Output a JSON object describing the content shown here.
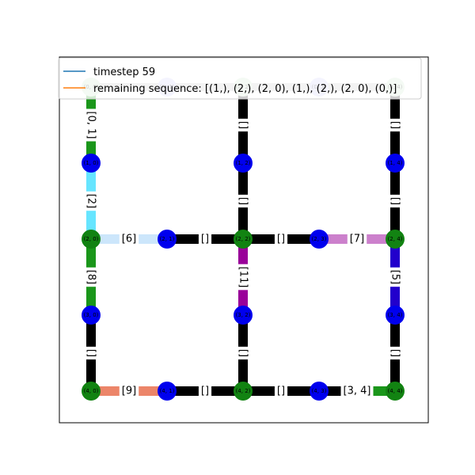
{
  "legend": {
    "timestep": "timestep 59",
    "sequence": "remaining sequence: [(1,), (2,), (2, 0), (1,), (2,), (2, 0), (0,)]",
    "timestep_color": "#1f77b4",
    "sequence_color": "#ff7f0e"
  },
  "colors": {
    "agent_node": "#0000ee",
    "location_node": "#128312",
    "faded_green": "#c8e4c8",
    "faded_blue": "#c8c8f8",
    "idle_edge": "#000000",
    "cyan": "#66e5ff",
    "light_blue": "#cce6fb",
    "green_edge": "#1a961a",
    "purple": "#990099",
    "orchid": "#cc80cc",
    "indigo": "#2200cc",
    "salmon": "#ec8569",
    "top_edge": "#c0c0c0"
  },
  "nodes": [
    {
      "id": "n00",
      "label": "(0, 0)",
      "type": "faded_green"
    },
    {
      "id": "n01",
      "label": "(0, 1)",
      "type": "faded_blue"
    },
    {
      "id": "n02",
      "label": "(0, 2)",
      "type": "faded_green"
    },
    {
      "id": "n03",
      "label": "(0, 3)",
      "type": "faded_blue"
    },
    {
      "id": "n04",
      "label": "(0, 4)",
      "type": "faded_green"
    },
    {
      "id": "n10",
      "label": "(1, 0)",
      "type": "agent_node"
    },
    {
      "id": "n12",
      "label": "(1, 2)",
      "type": "agent_node"
    },
    {
      "id": "n14",
      "label": "(1, 4)",
      "type": "agent_node"
    },
    {
      "id": "n20",
      "label": "(2, 0)",
      "type": "location_node"
    },
    {
      "id": "n21",
      "label": "(2, 1)",
      "type": "agent_node"
    },
    {
      "id": "n22",
      "label": "(2, 2)",
      "type": "location_node"
    },
    {
      "id": "n23",
      "label": "(2, 3)",
      "type": "agent_node"
    },
    {
      "id": "n24",
      "label": "(2, 4)",
      "type": "location_node"
    },
    {
      "id": "n30",
      "label": "(3, 0)",
      "type": "agent_node"
    },
    {
      "id": "n32",
      "label": "(3, 2)",
      "type": "agent_node"
    },
    {
      "id": "n34",
      "label": "(3, 4)",
      "type": "agent_node"
    },
    {
      "id": "n40",
      "label": "(4, 0)",
      "type": "location_node"
    },
    {
      "id": "n41",
      "label": "(4, 1)",
      "type": "agent_node"
    },
    {
      "id": "n42",
      "label": "(4, 2)",
      "type": "location_node"
    },
    {
      "id": "n43",
      "label": "(4, 3)",
      "type": "agent_node"
    },
    {
      "id": "n44",
      "label": "(4, 4)",
      "type": "location_node"
    }
  ],
  "edges": [
    {
      "id": "e-top-0",
      "from": "n00",
      "to": "n01",
      "label": "",
      "color_a": "top_edge",
      "color_b": "top_edge"
    },
    {
      "id": "e-top-1",
      "from": "n01",
      "to": "n02",
      "label": "",
      "color_a": "top_edge",
      "color_b": "top_edge"
    },
    {
      "id": "e-top-2",
      "from": "n02",
      "to": "n03",
      "label": "",
      "color_a": "top_edge",
      "color_b": "top_edge"
    },
    {
      "id": "e-top-3",
      "from": "n03",
      "to": "n04",
      "label": "",
      "color_a": "top_edge",
      "color_b": "top_edge"
    },
    {
      "id": "e-c0-0",
      "from": "n00",
      "to": "n10",
      "label": "[0, 1]",
      "color_a": "green_edge",
      "color_b": "green_edge"
    },
    {
      "id": "e-c0-1",
      "from": "n10",
      "to": "n20",
      "label": "[2]",
      "color_a": "cyan",
      "color_b": "cyan"
    },
    {
      "id": "e-c0-2",
      "from": "n20",
      "to": "n30",
      "label": "[8]",
      "color_a": "green_edge",
      "color_b": "green_edge"
    },
    {
      "id": "e-c0-3",
      "from": "n30",
      "to": "n40",
      "label": "[]",
      "color_a": "idle_edge",
      "color_b": "idle_edge"
    },
    {
      "id": "e-c2-0",
      "from": "n02",
      "to": "n12",
      "label": "[]",
      "color_a": "idle_edge",
      "color_b": "idle_edge"
    },
    {
      "id": "e-c2-1",
      "from": "n12",
      "to": "n22",
      "label": "[]",
      "color_a": "idle_edge",
      "color_b": "idle_edge"
    },
    {
      "id": "e-c2-2",
      "from": "n22",
      "to": "n32",
      "label": "[11]",
      "color_a": "purple",
      "color_b": "purple"
    },
    {
      "id": "e-c2-3",
      "from": "n32",
      "to": "n42",
      "label": "[]",
      "color_a": "idle_edge",
      "color_b": "idle_edge"
    },
    {
      "id": "e-c4-0",
      "from": "n04",
      "to": "n14",
      "label": "[]",
      "color_a": "idle_edge",
      "color_b": "idle_edge"
    },
    {
      "id": "e-c4-1",
      "from": "n14",
      "to": "n24",
      "label": "[]",
      "color_a": "idle_edge",
      "color_b": "idle_edge"
    },
    {
      "id": "e-c4-2",
      "from": "n24",
      "to": "n34",
      "label": "[5]",
      "color_a": "indigo",
      "color_b": "indigo"
    },
    {
      "id": "e-c4-3",
      "from": "n34",
      "to": "n44",
      "label": "[]",
      "color_a": "idle_edge",
      "color_b": "idle_edge"
    },
    {
      "id": "e-r2-0",
      "from": "n20",
      "to": "n21",
      "label": "[6]",
      "color_a": "light_blue",
      "color_b": "light_blue"
    },
    {
      "id": "e-r2-1",
      "from": "n21",
      "to": "n22",
      "label": "[]",
      "color_a": "idle_edge",
      "color_b": "idle_edge"
    },
    {
      "id": "e-r2-2",
      "from": "n22",
      "to": "n23",
      "label": "[]",
      "color_a": "idle_edge",
      "color_b": "idle_edge"
    },
    {
      "id": "e-r2-3",
      "from": "n23",
      "to": "n24",
      "label": "[7]",
      "color_a": "orchid",
      "color_b": "orchid"
    },
    {
      "id": "e-r4-0",
      "from": "n40",
      "to": "n41",
      "label": "[9]",
      "color_a": "salmon",
      "color_b": "salmon"
    },
    {
      "id": "e-r4-1",
      "from": "n41",
      "to": "n42",
      "label": "[]",
      "color_a": "idle_edge",
      "color_b": "idle_edge"
    },
    {
      "id": "e-r4-2",
      "from": "n42",
      "to": "n43",
      "label": "[]",
      "color_a": "idle_edge",
      "color_b": "idle_edge"
    },
    {
      "id": "e-r4-3",
      "from": "n43",
      "to": "n44",
      "label": "[3, 4]",
      "color_a": "idle_edge",
      "color_b": "green_edge"
    }
  ]
}
